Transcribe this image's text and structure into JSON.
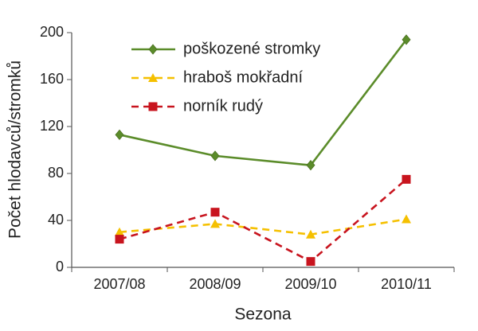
{
  "chart_data": {
    "type": "line",
    "x_label": "Sezona",
    "y_label": "Počet hlodavců/stromků",
    "categories": [
      "2007/08",
      "2008/09",
      "2009/10",
      "2010/11"
    ],
    "series": [
      {
        "name": "poškozené stromky",
        "color": "#5b8c2a",
        "marker": "diamond",
        "dashed": false,
        "values": [
          113,
          95,
          87,
          194
        ]
      },
      {
        "name": "hraboš mokřadní",
        "color": "#f5c000",
        "marker": "triangle",
        "dashed": true,
        "values": [
          30,
          37,
          28,
          41
        ]
      },
      {
        "name": "norník rudý",
        "color": "#c8141e",
        "marker": "square",
        "dashed": true,
        "values": [
          24,
          47,
          5,
          75
        ]
      }
    ],
    "ylim": [
      0,
      200
    ],
    "yticks": [
      0,
      40,
      80,
      120,
      160,
      200
    ],
    "grid": false,
    "legend": "upper left"
  }
}
